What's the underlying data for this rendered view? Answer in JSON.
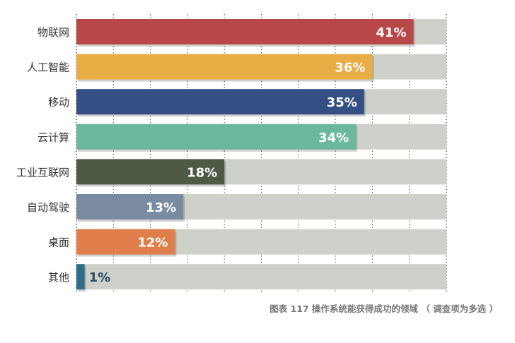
{
  "chart_data": {
    "type": "bar",
    "orientation": "horizontal",
    "title": "",
    "xlabel": "",
    "ylabel": "",
    "xlim": [
      0,
      45
    ],
    "grid": true,
    "categories": [
      "物联网",
      "人工智能",
      "移动",
      "云计算",
      "工业互联网",
      "自动驾驶",
      "桌面",
      "其他"
    ],
    "values": [
      41,
      36,
      35,
      34,
      18,
      13,
      12,
      1
    ],
    "value_labels": [
      "41%",
      "36%",
      "35%",
      "34%",
      "18%",
      "13%",
      "12%",
      "1%"
    ],
    "colors": [
      "#b84747",
      "#e9ad45",
      "#354f84",
      "#6cb89c",
      "#4f5a46",
      "#7a8aa0",
      "#e07f4c",
      "#2f6e87"
    ],
    "background_track_color": "#cdd1c9",
    "label_color_inside": "#ffffff",
    "label_color_outside": "#2b4b63"
  },
  "caption": "图表 117 操作系统能获得成功的领域 （ 调查项为多选 ）"
}
